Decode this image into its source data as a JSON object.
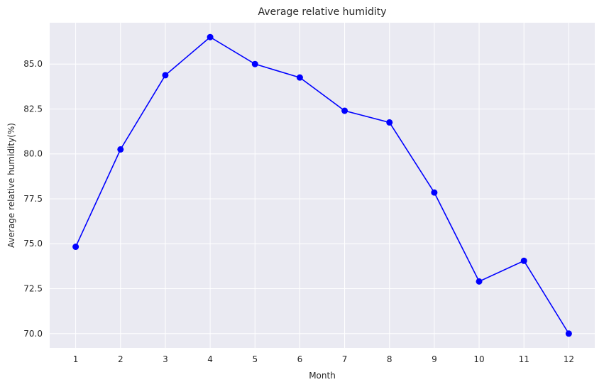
{
  "chart_data": {
    "type": "line",
    "title": "Average relative humidity",
    "xlabel": "Month",
    "ylabel": "Average relative humidity(%)",
    "x": [
      1,
      2,
      3,
      4,
      5,
      6,
      7,
      8,
      9,
      10,
      11,
      12
    ],
    "series": [
      {
        "values": [
          74.83,
          80.25,
          84.38,
          86.5,
          85.0,
          84.25,
          82.4,
          81.75,
          77.85,
          72.9,
          74.05,
          70.0
        ],
        "color": "#0000ff",
        "marker": "circle"
      }
    ],
    "xticks": [
      "1",
      "2",
      "3",
      "4",
      "5",
      "6",
      "7",
      "8",
      "9",
      "10",
      "11",
      "12"
    ],
    "yticks": [
      "70.0",
      "72.5",
      "75.0",
      "77.5",
      "80.0",
      "82.5",
      "85.0"
    ],
    "ylim": [
      69.2,
      87.3
    ],
    "grid": true,
    "background": "#eaeaf2",
    "grid_color": "#ffffff"
  }
}
